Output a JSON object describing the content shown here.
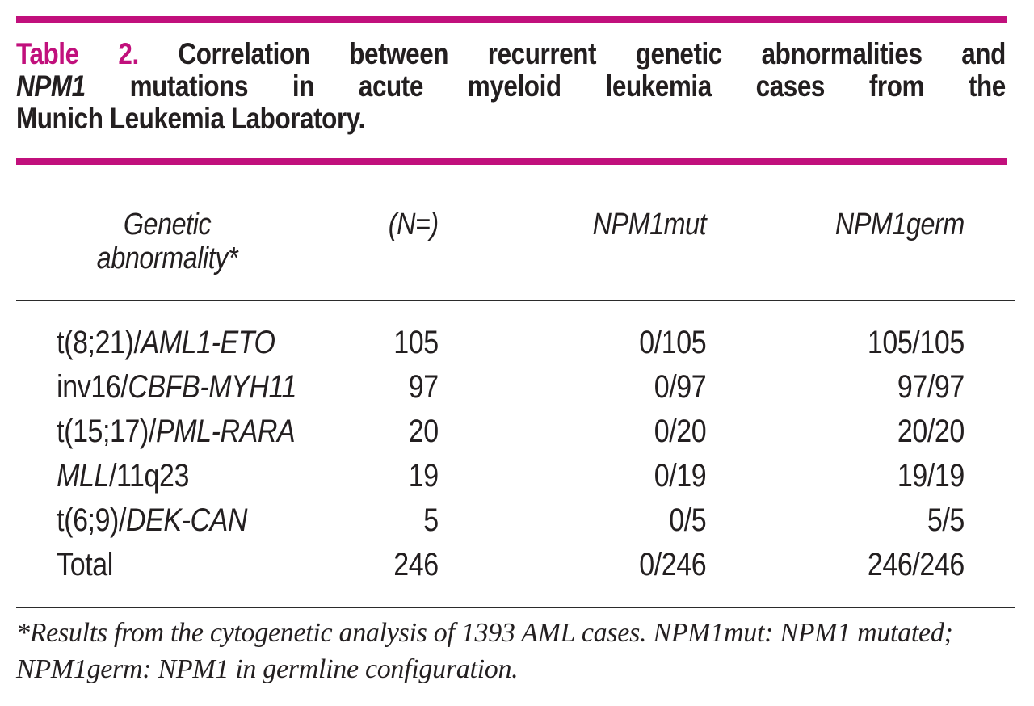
{
  "colors": {
    "accent": "#C1107C",
    "text": "#231F20",
    "rule": "#2B2B2B",
    "background": "#FFFFFF"
  },
  "title": {
    "label": "Table 2.",
    "line1_rest": "Correlation between recurrent genetic abnormalities and",
    "line2_gene": "NPM1",
    "line2_rest": "mutations in acute myeloid leukemia cases from the",
    "line3": "Munich Leukemia Laboratory."
  },
  "table": {
    "columns": {
      "col1_line1": "Genetic",
      "col1_line2": "abnormality*",
      "col2": "(N=)",
      "col3": "NPM1mut",
      "col4": "NPM1germ"
    },
    "rows": [
      {
        "label_prefix": "t(8;21)/",
        "label_gene": "AML1-ETO",
        "label_suffix": "",
        "n": "105",
        "npm1mut": "0/105",
        "npm1germ": "105/105"
      },
      {
        "label_prefix": "inv16/",
        "label_gene": "CBFB-MYH11",
        "label_suffix": "",
        "n": "97",
        "npm1mut": "0/97",
        "npm1germ": "97/97"
      },
      {
        "label_prefix": "t(15;17)/",
        "label_gene": "PML-RARA",
        "label_suffix": "",
        "n": "20",
        "npm1mut": "0/20",
        "npm1germ": "20/20"
      },
      {
        "label_prefix": "",
        "label_gene": "MLL",
        "label_suffix": "/11q23",
        "n": "19",
        "npm1mut": "0/19",
        "npm1germ": "19/19"
      },
      {
        "label_prefix": "t(6;9)/",
        "label_gene": "DEK-CAN",
        "label_suffix": "",
        "n": "5",
        "npm1mut": "0/5",
        "npm1germ": "5/5"
      },
      {
        "label_prefix": "Total",
        "label_gene": "",
        "label_suffix": "",
        "n": "246",
        "npm1mut": "0/246",
        "npm1germ": "246/246"
      }
    ],
    "footnote": "*Results from the cytogenetic analysis of 1393 AML cases. NPM1mut: NPM1 mutated; NPM1germ: NPM1 in germline configuration."
  }
}
